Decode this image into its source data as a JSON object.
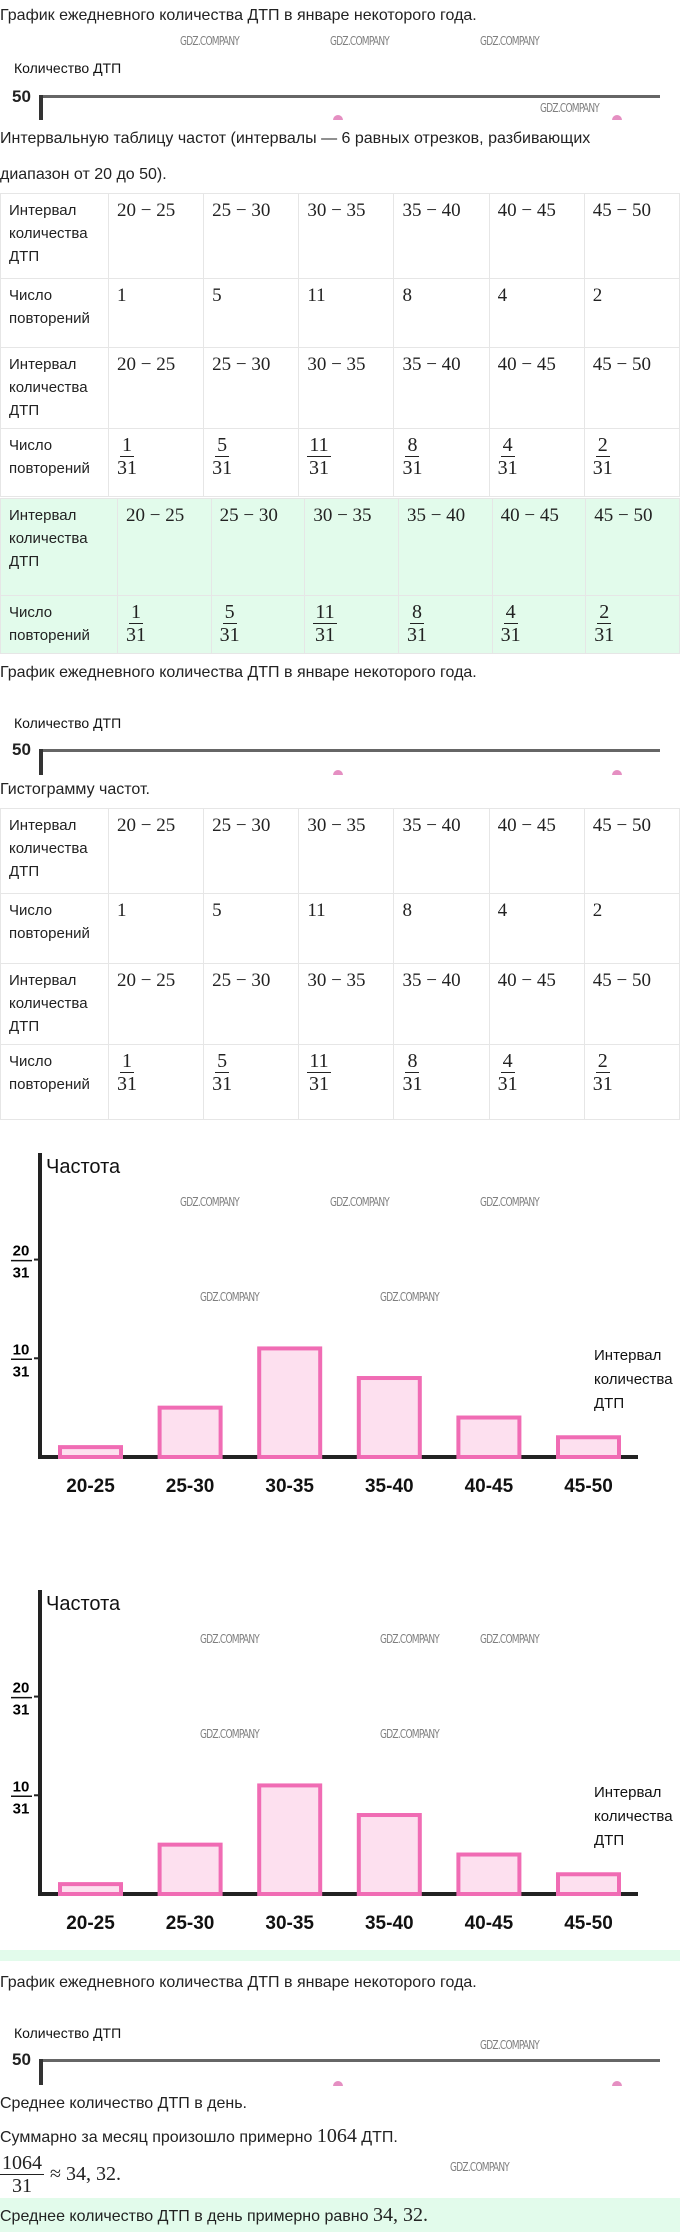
{
  "watermark": "GDZ.COMPANY",
  "section1": {
    "title": "График ежедневного количества ДТП в январе некоторого года.",
    "y_axis_label": "Количество ДТП",
    "y_tick": "50"
  },
  "task_interval": {
    "line1": "Интервальную таблицу частот (интервалы — 6 равных отрезков, разбивающих",
    "line2": "диапазон от 20 до 50)."
  },
  "table1": {
    "rows": [
      {
        "header": "Интервал количества ДТП",
        "cells": [
          "20 − 25",
          "25 − 30",
          "30 − 35",
          "35 − 40",
          "40 − 45",
          "45 − 50"
        ]
      },
      {
        "header": "Число повторений",
        "cells": [
          "1",
          "5",
          "11",
          "8",
          "4",
          "2"
        ]
      },
      {
        "header": "Интервал количества ДТП",
        "cells": [
          "20 − 25",
          "25 − 30",
          "30 − 35",
          "35 − 40",
          "40 − 45",
          "45 − 50"
        ]
      },
      {
        "header": "Число повторений",
        "fractions": [
          [
            "1",
            "31"
          ],
          [
            "5",
            "31"
          ],
          [
            "11",
            "31"
          ],
          [
            "8",
            "31"
          ],
          [
            "4",
            "31"
          ],
          [
            "2",
            "31"
          ]
        ]
      }
    ]
  },
  "answer_table": {
    "rows": [
      {
        "header": "Интервал количества ДТП",
        "cells": [
          "20 − 25",
          "25 − 30",
          "30 − 35",
          "35 − 40",
          "40 − 45",
          "45 − 50"
        ]
      },
      {
        "header": "Число повторений",
        "fractions": [
          [
            "1",
            "31"
          ],
          [
            "5",
            "31"
          ],
          [
            "11",
            "31"
          ],
          [
            "8",
            "31"
          ],
          [
            "4",
            "31"
          ],
          [
            "2",
            "31"
          ]
        ]
      }
    ]
  },
  "section2": {
    "title": "График ежедневного количества ДТП в январе некоторого года.",
    "y_axis_label": "Количество ДТП",
    "y_tick": "50"
  },
  "task_histogram": "Гистограмму частот.",
  "table2": {
    "rows": [
      {
        "header": "Интервал количества ДТП",
        "cells": [
          "20 − 25",
          "25 − 30",
          "30 − 35",
          "35 − 40",
          "40 − 45",
          "45 − 50"
        ]
      },
      {
        "header": "Число повторений",
        "cells": [
          "1",
          "5",
          "11",
          "8",
          "4",
          "2"
        ]
      },
      {
        "header": "Интервал количества ДТП",
        "cells": [
          "20 − 25",
          "25 − 30",
          "30 − 35",
          "35 − 40",
          "40 − 45",
          "45 − 50"
        ]
      },
      {
        "header": "Число повторений",
        "fractions": [
          [
            "1",
            "31"
          ],
          [
            "5",
            "31"
          ],
          [
            "11",
            "31"
          ],
          [
            "8",
            "31"
          ],
          [
            "4",
            "31"
          ],
          [
            "2",
            "31"
          ]
        ]
      }
    ]
  },
  "chart_data": [
    {
      "type": "bar",
      "title": "",
      "ylabel": "Частота",
      "xlabel": "Интервал количества ДТП",
      "categories": [
        "20-25",
        "25-30",
        "30-35",
        "35-40",
        "40-45",
        "45-50"
      ],
      "values": [
        0.0323,
        0.1613,
        0.3548,
        0.2581,
        0.129,
        0.0645
      ],
      "values_fraction": [
        "1/31",
        "5/31",
        "11/31",
        "8/31",
        "4/31",
        "2/31"
      ],
      "yticks": [
        {
          "value": 0.3226,
          "num": "10",
          "den": "31"
        },
        {
          "value": 0.6452,
          "num": "20",
          "den": "31"
        }
      ],
      "ylim": [
        0,
        0.92
      ],
      "colors": {
        "bar_fill": "#fde0ef",
        "bar_stroke": "#f06cb4",
        "axis": "#222222"
      }
    },
    {
      "type": "bar",
      "title": "",
      "ylabel": "Частота",
      "xlabel": "Интервал количества ДТП",
      "categories": [
        "20-25",
        "25-30",
        "30-35",
        "35-40",
        "40-45",
        "45-50"
      ],
      "values": [
        0.0323,
        0.1613,
        0.3548,
        0.2581,
        0.129,
        0.0645
      ],
      "values_fraction": [
        "1/31",
        "5/31",
        "11/31",
        "8/31",
        "4/31",
        "2/31"
      ],
      "yticks": [
        {
          "value": 0.3226,
          "num": "10",
          "den": "31"
        },
        {
          "value": 0.6452,
          "num": "20",
          "den": "31"
        }
      ],
      "ylim": [
        0,
        0.92
      ],
      "colors": {
        "bar_fill": "#fde0ef",
        "bar_stroke": "#f06cb4",
        "axis": "#222222"
      }
    }
  ],
  "section3": {
    "title": "График ежедневного количества ДТП в январе некоторого года.",
    "y_axis_label": "Количество ДТП",
    "y_tick": "50"
  },
  "task_mean": "Среднее количество ДТП в день.",
  "solution": {
    "sum_prefix": "Суммарно за месяц произошло примерно",
    "sum_value": "1064",
    "sum_suffix": "ДТП.",
    "frac_num": "1064",
    "frac_den": "31",
    "approx": "≈ 34, 32."
  },
  "answer": {
    "prefix": "Среднее количество ДТП в день примерно равно",
    "value": "34, 32."
  }
}
